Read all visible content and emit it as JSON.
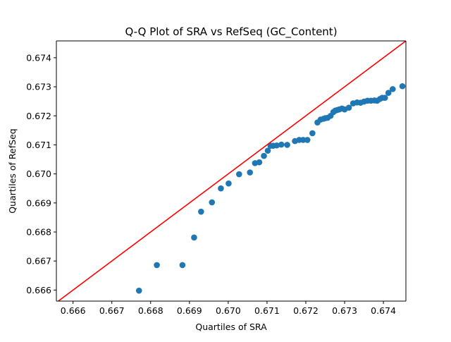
{
  "chart_data": {
    "type": "scatter",
    "title": "Q-Q Plot of SRA vs RefSeq (GC_Content)",
    "xlabel": "Quartiles of SRA",
    "ylabel": "Quartiles of RefSeq",
    "xlim": [
      0.66557,
      0.67458
    ],
    "ylim": [
      0.66562,
      0.67458
    ],
    "xticks": [
      "0.666",
      "0.667",
      "0.668",
      "0.669",
      "0.670",
      "0.671",
      "0.672",
      "0.673",
      "0.674"
    ],
    "yticks": [
      "0.666",
      "0.667",
      "0.668",
      "0.669",
      "0.670",
      "0.671",
      "0.672",
      "0.673",
      "0.674"
    ],
    "grid": false,
    "series": [
      {
        "color": "#1f77b4",
        "x": [
          0.6677,
          0.66816,
          0.66882,
          0.66912,
          0.6693,
          0.66958,
          0.66981,
          0.67001,
          0.67028,
          0.67056,
          0.67069,
          0.6708,
          0.67092,
          0.67102,
          0.67109,
          0.67116,
          0.67125,
          0.67137,
          0.67152,
          0.67172,
          0.67183,
          0.67193,
          0.67204,
          0.67217,
          0.6723,
          0.67238,
          0.67246,
          0.6725,
          0.67256,
          0.67264,
          0.67271,
          0.67276,
          0.67281,
          0.67286,
          0.67293,
          0.673,
          0.67311,
          0.67322,
          0.67332,
          0.67341,
          0.6735,
          0.67359,
          0.67368,
          0.67377,
          0.67384,
          0.67391,
          0.67397,
          0.67404,
          0.67413,
          0.67424,
          0.67449
        ],
        "y": [
          0.66598,
          0.66686,
          0.66686,
          0.66781,
          0.6687,
          0.66902,
          0.6695,
          0.66967,
          0.66999,
          0.67005,
          0.67037,
          0.6704,
          0.67062,
          0.6708,
          0.67097,
          0.67097,
          0.67098,
          0.67101,
          0.671,
          0.67113,
          0.67117,
          0.67117,
          0.67117,
          0.6714,
          0.67177,
          0.67187,
          0.6719,
          0.67192,
          0.67193,
          0.672,
          0.67213,
          0.67218,
          0.6722,
          0.67222,
          0.67225,
          0.67222,
          0.67228,
          0.67243,
          0.67246,
          0.67245,
          0.67249,
          0.67252,
          0.67252,
          0.67253,
          0.67252,
          0.67258,
          0.67262,
          0.67262,
          0.67279,
          0.67292,
          0.67302
        ]
      }
    ],
    "reference_line": {
      "x": [
        0.66557,
        0.67458
      ],
      "y": [
        0.66557,
        0.67458
      ],
      "color": "#ff0000"
    }
  }
}
